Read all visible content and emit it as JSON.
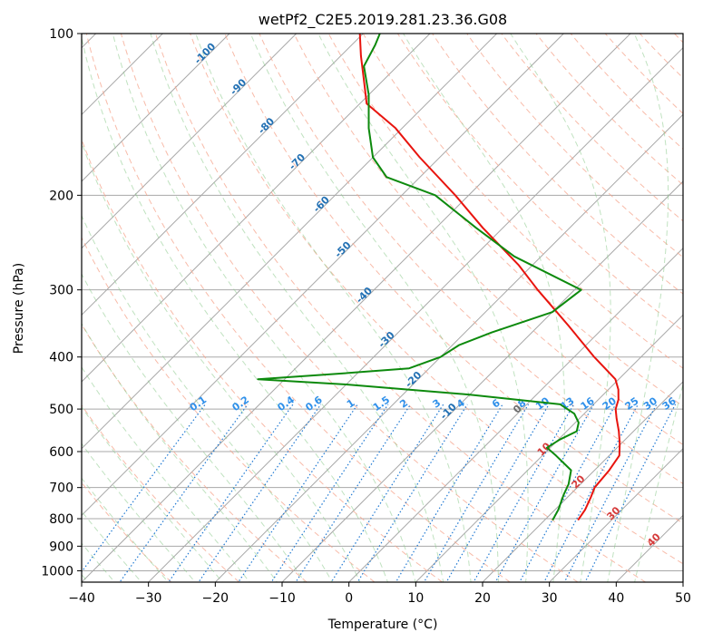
{
  "chart_data": {
    "type": "line",
    "subtype": "skew-t log-p diagram",
    "title": "wetPf2_C2E5.2019.281.23.36.G08",
    "xlabel": "Temperature (°C)",
    "ylabel": "Pressure (hPa)",
    "xlim": [
      -40,
      50
    ],
    "ylim": [
      1050,
      100
    ],
    "x_ticks": [
      -40,
      -30,
      -20,
      -10,
      0,
      10,
      20,
      30,
      40,
      50
    ],
    "x_tick_labels": [
      "−40",
      "−30",
      "−20",
      "−10",
      "0",
      "10",
      "20",
      "30",
      "40",
      "50"
    ],
    "y_ticks": [
      100,
      200,
      300,
      400,
      500,
      600,
      700,
      800,
      900,
      1000
    ],
    "y_tick_labels": [
      "100",
      "200",
      "300",
      "400",
      "500",
      "600",
      "700",
      "800",
      "900",
      "1000"
    ],
    "grid": true,
    "isotherms_cold_labels": [
      "-100",
      "-90",
      "-80",
      "-70",
      "-60",
      "-50",
      "-40",
      "-30",
      "-20",
      "-10"
    ],
    "isotherms_warm_labels": [
      "0",
      "10",
      "20",
      "30",
      "40"
    ],
    "mixing_ratio_labels": [
      "0.1",
      "0.2",
      "0.4",
      "0.6",
      "1",
      "1.5",
      "2",
      "3",
      "4",
      "6",
      "8",
      "10",
      "13",
      "16",
      "20",
      "25",
      "30",
      "36"
    ],
    "series": [
      {
        "name": "temperature",
        "color": "#e8140e",
        "points": [
          {
            "p": 805,
            "t": 25.0
          },
          {
            "p": 770,
            "t": 24.5
          },
          {
            "p": 730,
            "t": 23.5
          },
          {
            "p": 700,
            "t": 22.6
          },
          {
            "p": 650,
            "t": 22.2
          },
          {
            "p": 610,
            "t": 21.5
          },
          {
            "p": 580,
            "t": 19.8
          },
          {
            "p": 550,
            "t": 17.8
          },
          {
            "p": 520,
            "t": 15.5
          },
          {
            "p": 500,
            "t": 14.0
          },
          {
            "p": 480,
            "t": 13.0
          },
          {
            "p": 460,
            "t": 11.5
          },
          {
            "p": 440,
            "t": 9.5
          },
          {
            "p": 400,
            "t": 3.0
          },
          {
            "p": 350,
            "t": -5.5
          },
          {
            "p": 300,
            "t": -15.5
          },
          {
            "p": 270,
            "t": -22.0
          },
          {
            "p": 230,
            "t": -33.0
          },
          {
            "p": 200,
            "t": -42.0
          },
          {
            "p": 170,
            "t": -53.0
          },
          {
            "p": 150,
            "t": -61.0
          },
          {
            "p": 135,
            "t": -69.0
          },
          {
            "p": 125,
            "t": -72.0
          },
          {
            "p": 110,
            "t": -77.0
          },
          {
            "p": 100,
            "t": -80.5
          }
        ]
      },
      {
        "name": "dewpoint",
        "color": "#0d8a0d",
        "points": [
          {
            "p": 805,
            "t": 21.2
          },
          {
            "p": 770,
            "t": 20.5
          },
          {
            "p": 740,
            "t": 19.6
          },
          {
            "p": 720,
            "t": 19.0
          },
          {
            "p": 690,
            "t": 18.2
          },
          {
            "p": 650,
            "t": 16.5
          },
          {
            "p": 610,
            "t": 12.0
          },
          {
            "p": 590,
            "t": 9.5
          },
          {
            "p": 570,
            "t": 10.2
          },
          {
            "p": 550,
            "t": 11.5
          },
          {
            "p": 530,
            "t": 10.5
          },
          {
            "p": 510,
            "t": 8.5
          },
          {
            "p": 490,
            "t": 5.0
          },
          {
            "p": 470,
            "t": -10.0
          },
          {
            "p": 450,
            "t": -30.0
          },
          {
            "p": 440,
            "t": -44.0
          },
          {
            "p": 430,
            "t": -33.0
          },
          {
            "p": 420,
            "t": -23.0
          },
          {
            "p": 400,
            "t": -20.0
          },
          {
            "p": 380,
            "t": -19.0
          },
          {
            "p": 360,
            "t": -16.0
          },
          {
            "p": 330,
            "t": -10.0
          },
          {
            "p": 300,
            "t": -9.0
          },
          {
            "p": 260,
            "t": -24.0
          },
          {
            "p": 230,
            "t": -34.0
          },
          {
            "p": 200,
            "t": -45.0
          },
          {
            "p": 185,
            "t": -55.0
          },
          {
            "p": 170,
            "t": -60.0
          },
          {
            "p": 150,
            "t": -65.0
          },
          {
            "p": 130,
            "t": -70.0
          },
          {
            "p": 115,
            "t": -75.0
          },
          {
            "p": 105,
            "t": -76.5
          },
          {
            "p": 100,
            "t": -77.5
          }
        ]
      }
    ]
  }
}
